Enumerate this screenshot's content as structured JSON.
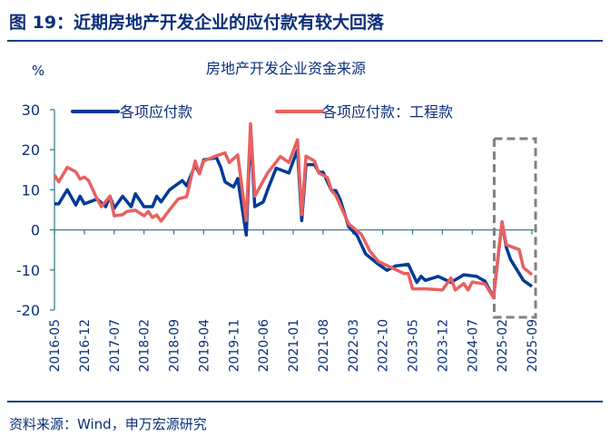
{
  "figure_title": "图 19：近期房地产开发企业的应付款有较大回落",
  "source": "资料来源：Wind，申万宏源研究",
  "colors": {
    "blue": "#003a97",
    "red": "#e8615f",
    "axis": "#3d7f8f",
    "box": "#808080"
  },
  "chart_data": {
    "type": "line",
    "title": "房地产开发企业资金来源",
    "ylabel": "%",
    "ylim": [
      -20,
      30
    ],
    "yticks": [
      -20,
      -10,
      0,
      10,
      20,
      30
    ],
    "xlim": [
      "2016-05",
      "2025-09"
    ],
    "xticks": [
      "2016-05",
      "2016-12",
      "2017-07",
      "2018-02",
      "2018-09",
      "2019-04",
      "2019-11",
      "2020-06",
      "2021-01",
      "2021-08",
      "2022-03",
      "2022-10",
      "2023-05",
      "2023-12",
      "2024-07",
      "2025-02",
      "2025-09"
    ],
    "legend_position": "top",
    "annotation": {
      "type": "dashed-box",
      "from": "2025-01",
      "to": "2025-09"
    },
    "series": [
      {
        "name": "各项应付款",
        "color": "#003a97",
        "points": [
          [
            "2016-05",
            6.5
          ],
          [
            "2016-06",
            6.5
          ],
          [
            "2016-08",
            10
          ],
          [
            "2016-10",
            6.2
          ],
          [
            "2016-11",
            8.4
          ],
          [
            "2016-12",
            6.5
          ],
          [
            "2017-03",
            7.7
          ],
          [
            "2017-05",
            5.8
          ],
          [
            "2017-06",
            8.4
          ],
          [
            "2017-07",
            5.4
          ],
          [
            "2017-09",
            8.4
          ],
          [
            "2017-11",
            5.8
          ],
          [
            "2017-12",
            9
          ],
          [
            "2018-02",
            5.8
          ],
          [
            "2018-04",
            5.8
          ],
          [
            "2018-05",
            8.4
          ],
          [
            "2018-06",
            7
          ],
          [
            "2018-08",
            10
          ],
          [
            "2018-11",
            12.3
          ],
          [
            "2018-12",
            11
          ],
          [
            "2019-02",
            16.2
          ],
          [
            "2019-03",
            14
          ],
          [
            "2019-04",
            17.5
          ],
          [
            "2019-07",
            18
          ],
          [
            "2019-08",
            15.6
          ],
          [
            "2019-09",
            12
          ],
          [
            "2019-11",
            10.7
          ],
          [
            "2019-12",
            12.8
          ],
          [
            "2020-02",
            -1.3
          ],
          [
            "2020-03",
            25
          ],
          [
            "2020-04",
            5.8
          ],
          [
            "2020-06",
            7
          ],
          [
            "2020-07",
            10
          ],
          [
            "2020-09",
            15.4
          ],
          [
            "2020-12",
            14.2
          ],
          [
            "2021-02",
            20
          ],
          [
            "2021-03",
            2.3
          ],
          [
            "2021-04",
            16.3
          ],
          [
            "2021-06",
            16.3
          ],
          [
            "2021-07",
            14.4
          ],
          [
            "2021-08",
            14.4
          ],
          [
            "2021-10",
            9.8
          ],
          [
            "2021-11",
            9.8
          ],
          [
            "2021-12",
            7.6
          ],
          [
            "2022-02",
            0.8
          ],
          [
            "2022-04",
            -1.4
          ],
          [
            "2022-06",
            -6
          ],
          [
            "2022-09",
            -8.6
          ],
          [
            "2022-11",
            -10.1
          ],
          [
            "2023-01",
            -9
          ],
          [
            "2023-04",
            -8.6
          ],
          [
            "2023-06",
            -13.1
          ],
          [
            "2023-07",
            -11.6
          ],
          [
            "2023-08",
            -12.6
          ],
          [
            "2023-11",
            -11.6
          ],
          [
            "2024-02",
            -13.1
          ],
          [
            "2024-05",
            -11.2
          ],
          [
            "2024-08",
            -11.6
          ],
          [
            "2024-10",
            -12.8
          ],
          [
            "2024-12",
            -16.9
          ],
          [
            "2025-02",
            2
          ],
          [
            "2025-03",
            -4.4
          ],
          [
            "2025-04",
            -7.4
          ],
          [
            "2025-07",
            -12.6
          ],
          [
            "2025-09",
            -14.1
          ]
        ]
      },
      {
        "name": "各项应付款：工程款",
        "color": "#e8615f",
        "points": [
          [
            "2016-05",
            13.7
          ],
          [
            "2016-06",
            12
          ],
          [
            "2016-08",
            15.6
          ],
          [
            "2016-10",
            14.5
          ],
          [
            "2016-11",
            12.7
          ],
          [
            "2016-12",
            13.2
          ],
          [
            "2017-01",
            12.3
          ],
          [
            "2017-03",
            7.7
          ],
          [
            "2017-04",
            5.8
          ],
          [
            "2017-06",
            8.4
          ],
          [
            "2017-07",
            3.5
          ],
          [
            "2017-09",
            3.8
          ],
          [
            "2017-10",
            4.6
          ],
          [
            "2017-12",
            4.9
          ],
          [
            "2018-02",
            3.5
          ],
          [
            "2018-03",
            4.6
          ],
          [
            "2018-04",
            3.1
          ],
          [
            "2018-05",
            3.7
          ],
          [
            "2018-06",
            2.2
          ],
          [
            "2018-08",
            5
          ],
          [
            "2018-10",
            7.7
          ],
          [
            "2018-12",
            8.3
          ],
          [
            "2019-02",
            17.2
          ],
          [
            "2019-03",
            14
          ],
          [
            "2019-04",
            17.2
          ],
          [
            "2019-07",
            18.5
          ],
          [
            "2019-09",
            19.2
          ],
          [
            "2019-10",
            16.8
          ],
          [
            "2019-12",
            18.7
          ],
          [
            "2020-02",
            2.3
          ],
          [
            "2020-03",
            26.5
          ],
          [
            "2020-04",
            8.4
          ],
          [
            "2020-06",
            12.3
          ],
          [
            "2020-07",
            14.2
          ],
          [
            "2020-10",
            18.3
          ],
          [
            "2020-12",
            16.8
          ],
          [
            "2021-02",
            22.5
          ],
          [
            "2021-03",
            3.8
          ],
          [
            "2021-04",
            18.4
          ],
          [
            "2021-06",
            17.2
          ],
          [
            "2021-07",
            14.2
          ],
          [
            "2021-09",
            13.1
          ],
          [
            "2021-10",
            9.8
          ],
          [
            "2021-11",
            8.6
          ],
          [
            "2022-02",
            1.5
          ],
          [
            "2022-05",
            -1.1
          ],
          [
            "2022-07",
            -5.3
          ],
          [
            "2022-09",
            -7.9
          ],
          [
            "2022-12",
            -9.4
          ],
          [
            "2023-03",
            -10.9
          ],
          [
            "2023-04",
            -10.9
          ],
          [
            "2023-05",
            -14.7
          ],
          [
            "2023-08",
            -14.7
          ],
          [
            "2023-12",
            -15
          ],
          [
            "2024-02",
            -12
          ],
          [
            "2024-03",
            -15
          ],
          [
            "2024-05",
            -13.4
          ],
          [
            "2024-06",
            -15
          ],
          [
            "2024-07",
            -13
          ],
          [
            "2024-10",
            -13.5
          ],
          [
            "2024-12",
            -16.9
          ],
          [
            "2025-02",
            2
          ],
          [
            "2025-03",
            -3.7
          ],
          [
            "2025-06",
            -4.9
          ],
          [
            "2025-07",
            -9.4
          ],
          [
            "2025-09",
            -11.2
          ]
        ]
      }
    ]
  }
}
